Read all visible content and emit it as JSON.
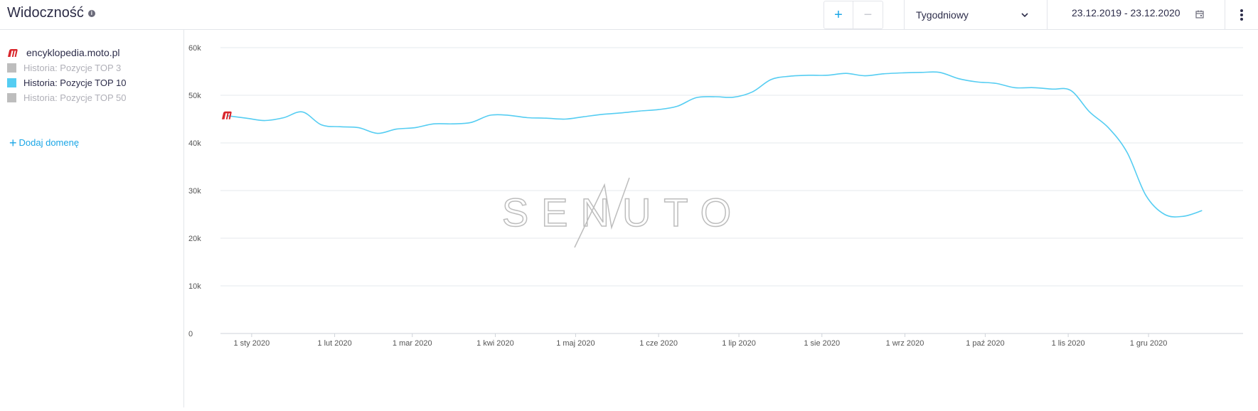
{
  "header": {
    "title": "Widoczność",
    "zoom_in": "+",
    "zoom_out": "−",
    "period": "Tygodniowy",
    "date_range": "23.12.2019 - 23.12.2020"
  },
  "sidebar": {
    "domain": "encyklopedia.moto.pl",
    "legend": [
      {
        "label": "Historia: Pozycje TOP 3",
        "color": "#bdbdbd",
        "active": false
      },
      {
        "label": "Historia: Pozycje TOP 10",
        "color": "#55cdf2",
        "active": true
      },
      {
        "label": "Historia: Pozycje TOP 50",
        "color": "#bdbdbd",
        "active": false
      }
    ],
    "add_domain": "Dodaj domenę"
  },
  "colors": {
    "accent": "#1aa6e6",
    "line": "#55cdf2",
    "brand_red": "#d9262c"
  },
  "chart_data": {
    "type": "line",
    "y_ticks": [
      "0",
      "10k",
      "20k",
      "30k",
      "40k",
      "50k",
      "60k"
    ],
    "ylim": [
      0,
      60000
    ],
    "x_ticks": [
      "1 sty 2020",
      "1 lut 2020",
      "1 mar 2020",
      "1 kwi 2020",
      "1 maj 2020",
      "1 cze 2020",
      "1 lip 2020",
      "1 sie 2020",
      "1 wrz 2020",
      "1 paź 2020",
      "1 lis 2020",
      "1 gru 2020"
    ],
    "xlim": [
      "2019-12-23",
      "2020-12-23"
    ],
    "watermark": "SENUTO",
    "series": [
      {
        "color": "#55cdf2",
        "points": [
          [
            "2019-12-23",
            45700
          ],
          [
            "2019-12-30",
            45200
          ],
          [
            "2020-01-06",
            44700
          ],
          [
            "2020-01-13",
            45300
          ],
          [
            "2020-01-20",
            46500
          ],
          [
            "2020-01-27",
            43800
          ],
          [
            "2020-02-03",
            43400
          ],
          [
            "2020-02-10",
            43200
          ],
          [
            "2020-02-17",
            42000
          ],
          [
            "2020-02-24",
            42900
          ],
          [
            "2020-03-02",
            43200
          ],
          [
            "2020-03-09",
            44000
          ],
          [
            "2020-03-16",
            44000
          ],
          [
            "2020-03-23",
            44300
          ],
          [
            "2020-03-30",
            45800
          ],
          [
            "2020-04-06",
            45800
          ],
          [
            "2020-04-13",
            45300
          ],
          [
            "2020-04-20",
            45200
          ],
          [
            "2020-04-27",
            45000
          ],
          [
            "2020-05-04",
            45500
          ],
          [
            "2020-05-11",
            46000
          ],
          [
            "2020-05-18",
            46300
          ],
          [
            "2020-05-25",
            46700
          ],
          [
            "2020-06-01",
            47000
          ],
          [
            "2020-06-08",
            47700
          ],
          [
            "2020-06-15",
            49500
          ],
          [
            "2020-06-22",
            49700
          ],
          [
            "2020-06-29",
            49600
          ],
          [
            "2020-07-06",
            50700
          ],
          [
            "2020-07-13",
            53300
          ],
          [
            "2020-07-20",
            54000
          ],
          [
            "2020-07-27",
            54200
          ],
          [
            "2020-08-03",
            54200
          ],
          [
            "2020-08-10",
            54600
          ],
          [
            "2020-08-17",
            54100
          ],
          [
            "2020-08-24",
            54500
          ],
          [
            "2020-08-31",
            54700
          ],
          [
            "2020-09-07",
            54800
          ],
          [
            "2020-09-14",
            54800
          ],
          [
            "2020-09-21",
            53500
          ],
          [
            "2020-09-28",
            52800
          ],
          [
            "2020-10-05",
            52500
          ],
          [
            "2020-10-12",
            51600
          ],
          [
            "2020-10-19",
            51600
          ],
          [
            "2020-10-26",
            51300
          ],
          [
            "2020-11-02",
            51000
          ],
          [
            "2020-11-09",
            46500
          ],
          [
            "2020-11-16",
            43200
          ],
          [
            "2020-11-23",
            38000
          ],
          [
            "2020-11-30",
            29000
          ],
          [
            "2020-12-07",
            25000
          ],
          [
            "2020-12-14",
            24600
          ],
          [
            "2020-12-21",
            25800
          ]
        ]
      }
    ],
    "grid": true
  }
}
